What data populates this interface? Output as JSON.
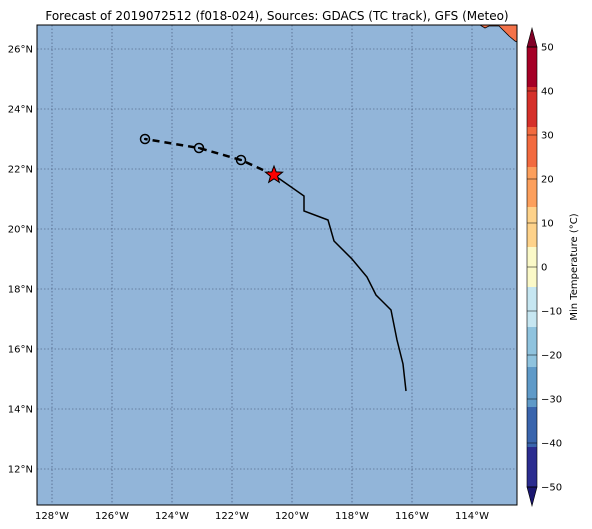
{
  "title": "Forecast of 2019072512 (f018-024), Sources: GDACS (TC track), GFS (Meteo)",
  "map": {
    "lon_range": [
      -128.5,
      -112.5
    ],
    "lat_range": [
      10.8,
      26.8
    ],
    "ocean_color": "#92b5d9",
    "land_color": "#f4734a",
    "grid": true,
    "lon_ticks": [
      {
        "value": -128,
        "label": "128°W"
      },
      {
        "value": -126,
        "label": "126°W"
      },
      {
        "value": -124,
        "label": "124°W"
      },
      {
        "value": -122,
        "label": "122°W"
      },
      {
        "value": -120,
        "label": "120°W"
      },
      {
        "value": -118,
        "label": "118°W"
      },
      {
        "value": -116,
        "label": "116°W"
      },
      {
        "value": -114,
        "label": "114°W"
      }
    ],
    "lat_ticks": [
      {
        "value": 12,
        "label": "12°N"
      },
      {
        "value": 14,
        "label": "14°N"
      },
      {
        "value": 16,
        "label": "16°N"
      },
      {
        "value": 18,
        "label": "18°N"
      },
      {
        "value": 20,
        "label": "20°N"
      },
      {
        "value": 22,
        "label": "22°N"
      },
      {
        "value": 24,
        "label": "24°N"
      },
      {
        "value": 26,
        "label": "26°N"
      }
    ]
  },
  "observed_track": [
    [
      -116.2,
      14.6
    ],
    [
      -116.3,
      15.5
    ],
    [
      -116.5,
      16.3
    ],
    [
      -116.7,
      17.3
    ],
    [
      -117.2,
      17.8
    ],
    [
      -117.5,
      18.4
    ],
    [
      -118.0,
      19.0
    ],
    [
      -118.6,
      19.6
    ],
    [
      -118.8,
      20.3
    ],
    [
      -119.6,
      20.6
    ],
    [
      -119.6,
      21.1
    ],
    [
      -120.6,
      21.8
    ]
  ],
  "forecast_track": [
    [
      -120.6,
      21.8
    ],
    [
      -121.7,
      22.3
    ],
    [
      -123.1,
      22.7
    ],
    [
      -124.9,
      23.0
    ]
  ],
  "forecast_points": [
    [
      -121.7,
      22.3
    ],
    [
      -123.1,
      22.7
    ],
    [
      -124.9,
      23.0
    ]
  ],
  "current_position": {
    "lon": -120.6,
    "lat": 21.8,
    "color": "#ff0000"
  },
  "colorbar": {
    "label": "Min Temperature (°C)",
    "levels": [
      -50,
      -40,
      -30,
      -20,
      -10,
      0,
      10,
      20,
      30,
      40,
      50
    ],
    "tick_labels": [
      "−50",
      "−40",
      "−30",
      "−20",
      "−10",
      "0",
      "10",
      "20",
      "30",
      "40",
      "50"
    ],
    "colors": [
      "#2b2c8f",
      "#3a65ad",
      "#5f9ac8",
      "#8fc3de",
      "#c6e6f1",
      "#fbf9c8",
      "#fed28a",
      "#fc9f5c",
      "#f26a3f",
      "#d5302a",
      "#a50026"
    ],
    "under_color": "#1a1670",
    "over_color": "#800026"
  }
}
